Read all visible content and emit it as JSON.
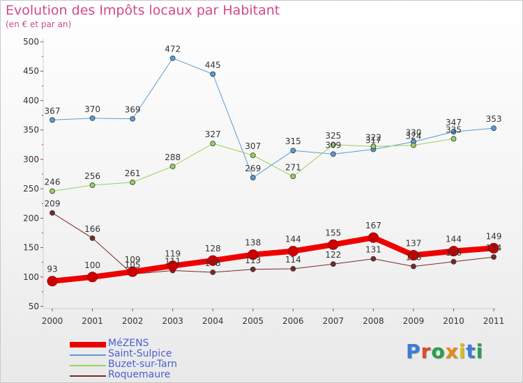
{
  "title": "Evolution des Impôts locaux par Habitant",
  "subtitle": "(en € et par an)",
  "logo_text": "Proxiti",
  "chart_data": {
    "type": "line",
    "title": "Evolution des Impôts locaux par Habitant",
    "subtitle": "(en € et par an)",
    "xlabel": "",
    "ylabel": "",
    "x": [
      "2000",
      "2001",
      "2002",
      "2003",
      "2004",
      "2005",
      "2006",
      "2007",
      "2008",
      "2009",
      "2010",
      "2011"
    ],
    "ylim": [
      50,
      500
    ],
    "yticks": [
      50,
      100,
      150,
      200,
      250,
      300,
      350,
      400,
      450,
      500
    ],
    "grid": false,
    "legend_position": "bottom-left",
    "series": [
      {
        "name": "Saint-Sulpice",
        "color": "#5b9bd5",
        "width": 1,
        "values": [
          367,
          370,
          369,
          472,
          445,
          269,
          315,
          309,
          317,
          330,
          347,
          353
        ],
        "labels": [
          "367",
          "370",
          "369",
          "472",
          "445",
          "269",
          "315",
          "309",
          "317",
          "330",
          "347",
          "353"
        ]
      },
      {
        "name": "Buzet-sur-Tarn",
        "color": "#96d25c",
        "width": 1,
        "values": [
          246,
          256,
          261,
          288,
          327,
          307,
          271,
          325,
          322,
          324,
          335,
          null
        ],
        "labels": [
          "246",
          "256",
          "261",
          "288",
          "327",
          "307",
          "271",
          "325",
          "322",
          "324",
          "335",
          ""
        ]
      },
      {
        "name": "Roquemaure",
        "color": "#7a2828",
        "width": 1,
        "values": [
          209,
          166,
          105,
          111,
          108,
          113,
          114,
          122,
          131,
          118,
          126,
          134
        ],
        "labels": [
          "209",
          "166",
          "105",
          "111",
          "108",
          "113",
          "114",
          "122",
          "131",
          "118",
          "126",
          "134"
        ]
      },
      {
        "name": "MéZENS",
        "color": "#ee0000",
        "width": 8,
        "values": [
          93,
          100,
          109,
          119,
          128,
          138,
          144,
          155,
          167,
          137,
          144,
          149
        ],
        "labels": [
          "93",
          "100",
          "109",
          "119",
          "128",
          "138",
          "144",
          "155",
          "167",
          "137",
          "144",
          "149"
        ]
      }
    ],
    "legend": [
      {
        "name": "MéZENS",
        "color": "#ee0000",
        "thickness": 8
      },
      {
        "name": "Saint-Sulpice",
        "color": "#5b9bd5",
        "thickness": 2
      },
      {
        "name": "Buzet-sur-Tarn",
        "color": "#96d25c",
        "thickness": 2
      },
      {
        "name": "Roquemaure",
        "color": "#7a2828",
        "thickness": 2
      }
    ]
  }
}
